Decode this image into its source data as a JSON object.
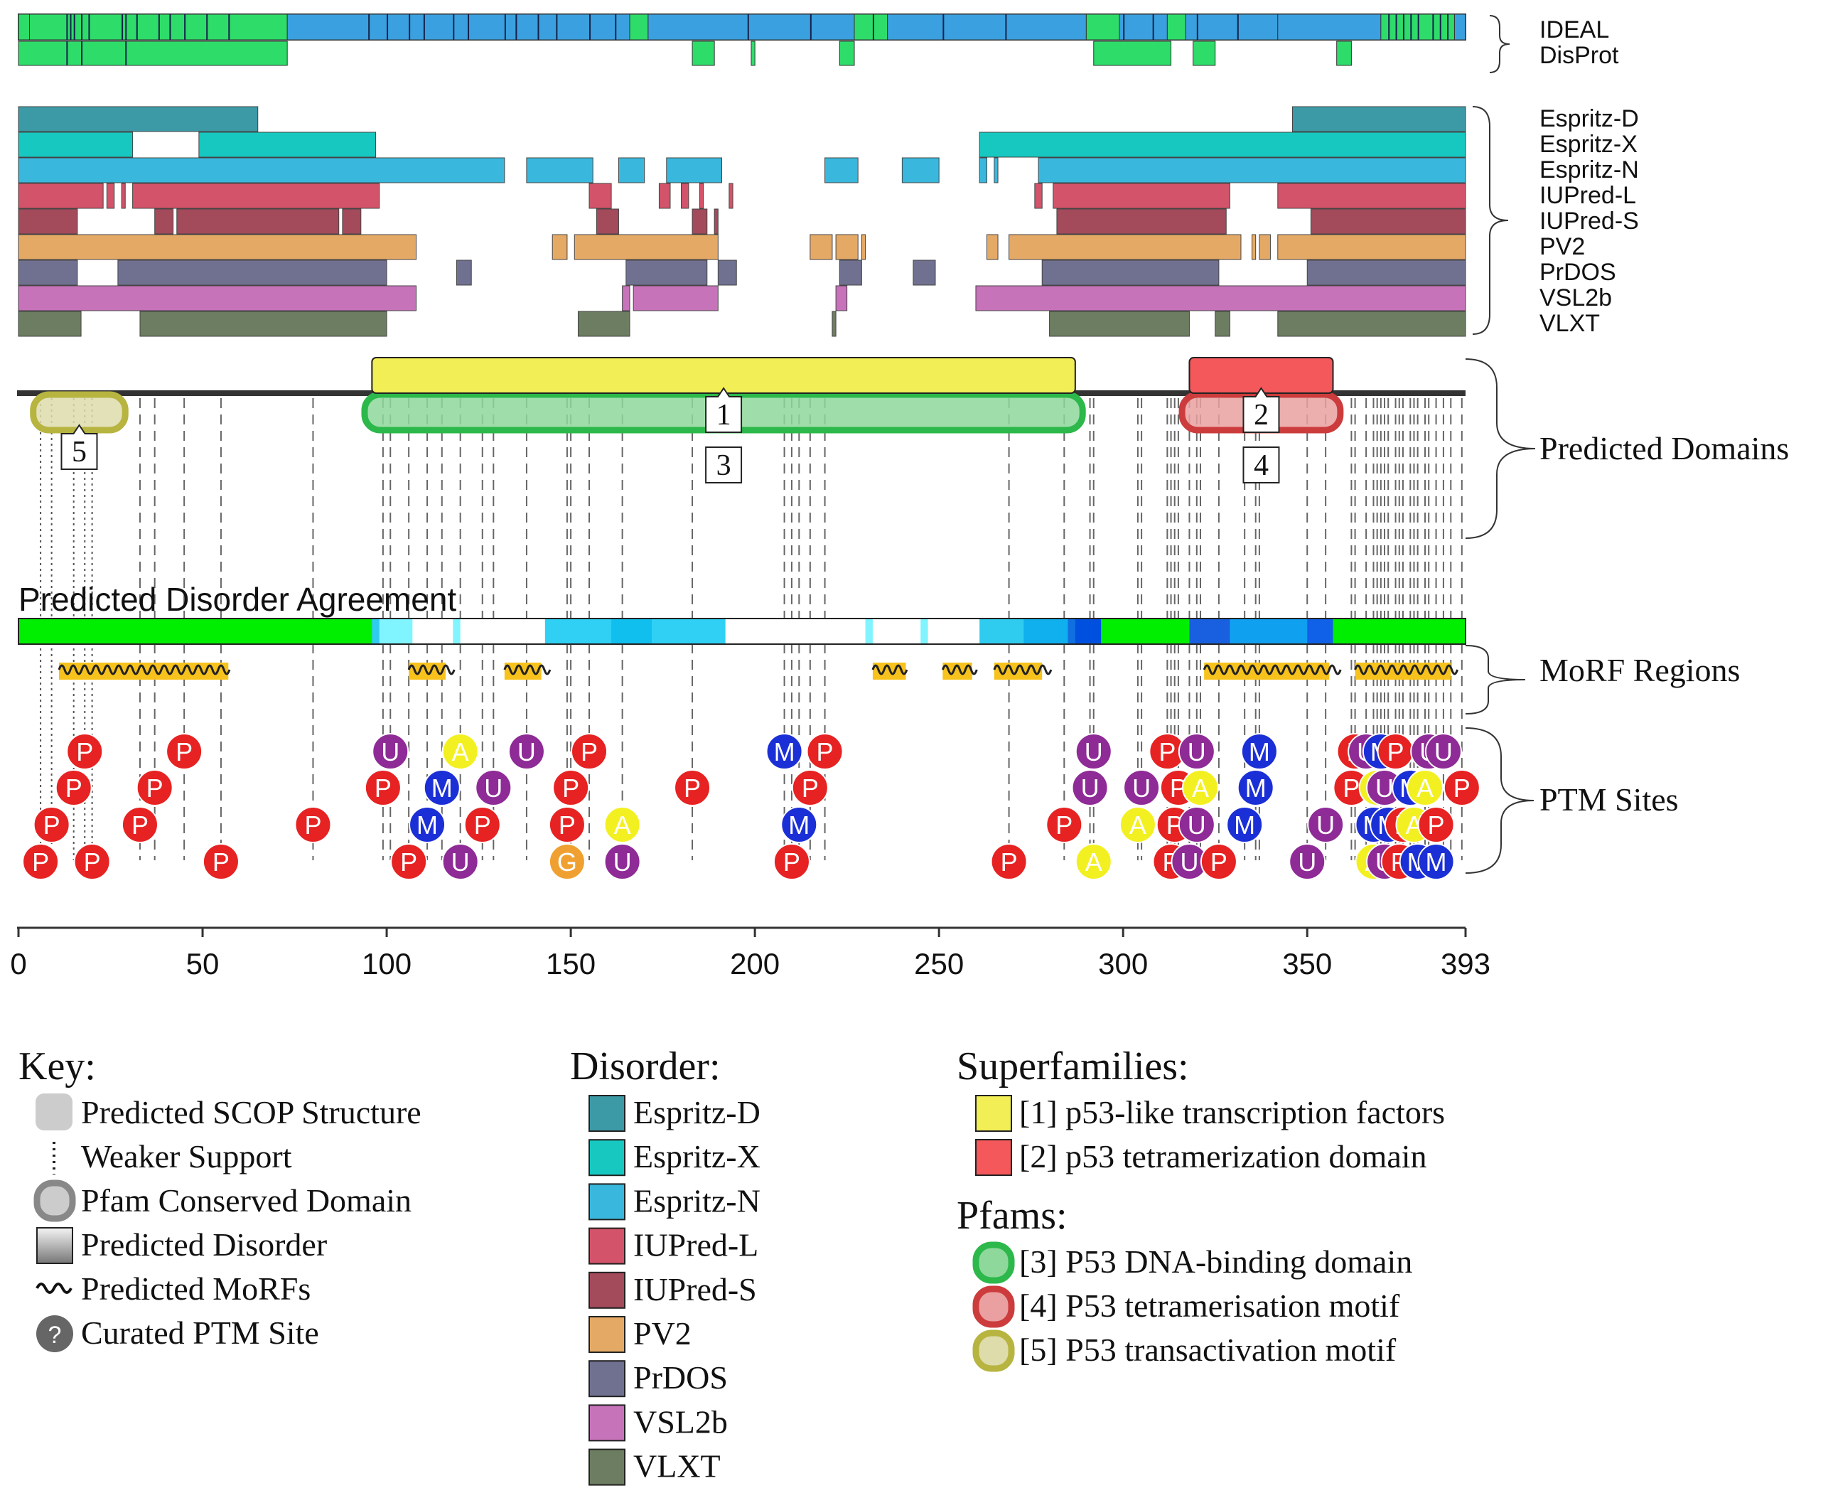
{
  "sequence_length": 393,
  "colors": {
    "ideal_ordered": "#3aa0df",
    "disorder_green": "#2edc6a",
    "superfamily_1": "#f2ee55",
    "superfamily_2": "#f4585a",
    "pfam_3": "#2cb84a",
    "pfam_4": "#cc3c3c",
    "pfam_5": "#b7b440",
    "agreement_high": "#00ee00",
    "morf": "#f7c21c",
    "ptm_P": "#e62222",
    "ptm_U": "#8e2b96",
    "ptm_M": "#1b2fd6",
    "ptm_A": "#f3f022",
    "ptm_G": "#f0a030"
  },
  "top_tracks": {
    "ideal": {
      "label": "IDEAL",
      "segments": [
        [
          0,
          3,
          "#2edc6a"
        ],
        [
          3,
          73,
          "#2edc6a"
        ],
        [
          73,
          166,
          "#3aa0df"
        ],
        [
          166,
          171,
          "#2edc6a"
        ],
        [
          171,
          227,
          "#3aa0df"
        ],
        [
          227,
          236,
          "#2edc6a"
        ],
        [
          236,
          290,
          "#3aa0df"
        ],
        [
          290,
          299,
          "#2edc6a"
        ],
        [
          299,
          312,
          "#3aa0df"
        ],
        [
          312,
          317,
          "#2edc6a"
        ],
        [
          317,
          342,
          "#3aa0df"
        ],
        [
          342,
          370,
          "#3aa0df"
        ],
        [
          370,
          390,
          "#2edc6a"
        ],
        [
          390,
          393,
          "#3aa0df"
        ]
      ],
      "stripes": [
        13,
        14,
        15,
        17,
        19,
        28,
        29,
        32,
        38,
        41,
        45,
        51,
        57,
        95,
        100,
        106,
        110,
        118,
        122,
        132,
        135,
        141,
        146,
        155,
        162,
        198,
        215,
        232,
        251,
        268,
        300,
        308,
        320,
        331,
        372,
        374,
        376,
        378,
        380,
        384,
        386,
        388
      ]
    },
    "disprot": {
      "label": "DisProt",
      "segments": [
        [
          0,
          73
        ],
        [
          183,
          189
        ],
        [
          199,
          200
        ],
        [
          223,
          227
        ],
        [
          292,
          313
        ],
        [
          319,
          325
        ],
        [
          358,
          362
        ]
      ],
      "stripes": [
        13,
        17,
        29
      ]
    }
  },
  "disorder_predictors": [
    {
      "name": "Espritz-D",
      "color": "#3b9aa6",
      "segments": [
        [
          0,
          65
        ],
        [
          346,
          393
        ]
      ]
    },
    {
      "name": "Espritz-X",
      "color": "#16c8c0",
      "segments": [
        [
          0,
          31
        ],
        [
          49,
          97
        ],
        [
          261,
          393
        ]
      ]
    },
    {
      "name": "Espritz-N",
      "color": "#3ab7dc",
      "segments": [
        [
          0,
          132
        ],
        [
          138,
          156
        ],
        [
          163,
          170
        ],
        [
          176,
          191
        ],
        [
          219,
          228
        ],
        [
          240,
          250
        ],
        [
          261,
          263
        ],
        [
          265,
          266
        ],
        [
          277,
          393
        ]
      ]
    },
    {
      "name": "IUPred-L",
      "color": "#d3536a",
      "segments": [
        [
          0,
          23
        ],
        [
          24,
          26
        ],
        [
          28,
          29
        ],
        [
          31,
          98
        ],
        [
          155,
          161
        ],
        [
          174,
          177
        ],
        [
          180,
          182
        ],
        [
          185,
          186
        ],
        [
          193,
          194
        ],
        [
          276,
          278
        ],
        [
          281,
          329
        ],
        [
          342,
          393
        ]
      ]
    },
    {
      "name": "IUPred-S",
      "color": "#a34a5b",
      "segments": [
        [
          0,
          16
        ],
        [
          37,
          42
        ],
        [
          43,
          87
        ],
        [
          88,
          93
        ],
        [
          157,
          163
        ],
        [
          183,
          187
        ],
        [
          189,
          190
        ],
        [
          282,
          328
        ],
        [
          351,
          393
        ]
      ]
    },
    {
      "name": "PV2",
      "color": "#e5a966",
      "segments": [
        [
          0,
          108
        ],
        [
          145,
          149
        ],
        [
          151,
          190
        ],
        [
          215,
          221
        ],
        [
          222,
          228
        ],
        [
          229,
          230
        ],
        [
          263,
          266
        ],
        [
          269,
          332
        ],
        [
          335,
          336
        ],
        [
          337,
          340
        ],
        [
          342,
          393
        ]
      ]
    },
    {
      "name": "PrDOS",
      "color": "#707090",
      "segments": [
        [
          0,
          16
        ],
        [
          27,
          100
        ],
        [
          119,
          123
        ],
        [
          165,
          187
        ],
        [
          190,
          195
        ],
        [
          223,
          229
        ],
        [
          243,
          249
        ],
        [
          278,
          326
        ],
        [
          350,
          393
        ]
      ]
    },
    {
      "name": "VSL2b",
      "color": "#c773ba",
      "segments": [
        [
          0,
          108
        ],
        [
          164,
          166
        ],
        [
          167,
          190
        ],
        [
          222,
          225
        ],
        [
          260,
          393
        ]
      ]
    },
    {
      "name": "VLXT",
      "color": "#6d7d61",
      "segments": [
        [
          0,
          17
        ],
        [
          33,
          100
        ],
        [
          152,
          166
        ],
        [
          221,
          222
        ],
        [
          280,
          318
        ],
        [
          325,
          329
        ],
        [
          342,
          393
        ]
      ]
    }
  ],
  "disorder_bracket_label": "",
  "domains": {
    "superfamilies": [
      {
        "id": "1",
        "start": 96,
        "end": 287,
        "color": "#f2ee55"
      },
      {
        "id": "2",
        "start": 318,
        "end": 357,
        "color": "#f4585a"
      }
    ],
    "pfams": [
      {
        "id": "3",
        "start": 94,
        "end": 289,
        "color": "#2cb84a"
      },
      {
        "id": "4",
        "start": 316,
        "end": 359,
        "color": "#cc3c3c"
      },
      {
        "id": "5",
        "start": 4,
        "end": 29,
        "color": "#b7b440"
      }
    ]
  },
  "section_labels": {
    "predicted_domains": "Predicted Domains",
    "agreement": "Predicted Disorder Agreement",
    "morf": "MoRF Regions",
    "ptm": "PTM Sites"
  },
  "agreement_bar": {
    "segments": [
      [
        0,
        96,
        "#00ee00"
      ],
      [
        96,
        98,
        "#30ccf0"
      ],
      [
        98,
        107,
        "#80f4ff"
      ],
      [
        107,
        118,
        "#ffffff"
      ],
      [
        118,
        120,
        "#80f4ff"
      ],
      [
        120,
        143,
        "#ffffff"
      ],
      [
        143,
        161,
        "#30d0f4"
      ],
      [
        161,
        172,
        "#10bfee"
      ],
      [
        172,
        192,
        "#30d0f4"
      ],
      [
        192,
        230,
        "#ffffff"
      ],
      [
        230,
        232,
        "#80f4ff"
      ],
      [
        232,
        245,
        "#ffffff"
      ],
      [
        245,
        247,
        "#80f4ff"
      ],
      [
        247,
        261,
        "#ffffff"
      ],
      [
        261,
        273,
        "#30ccf0"
      ],
      [
        273,
        285,
        "#10b0ee"
      ],
      [
        285,
        287,
        "#1070e0"
      ],
      [
        287,
        294,
        "#0050e0"
      ],
      [
        294,
        318,
        "#00ee00"
      ],
      [
        318,
        329,
        "#1860e0"
      ],
      [
        329,
        350,
        "#10a0f0"
      ],
      [
        350,
        357,
        "#1060e8"
      ],
      [
        357,
        393,
        "#00ee00"
      ]
    ]
  },
  "morfs": [
    [
      11,
      57
    ],
    [
      106,
      116
    ],
    [
      132,
      142
    ],
    [
      232,
      241
    ],
    [
      251,
      259
    ],
    [
      265,
      278
    ],
    [
      322,
      356
    ],
    [
      363,
      389
    ]
  ],
  "ptm_rows": [
    [
      [
        "P",
        18
      ],
      [
        "P",
        45
      ],
      [
        "U",
        101
      ],
      [
        "A",
        120
      ],
      [
        "U",
        138
      ],
      [
        "P",
        155
      ],
      [
        "M",
        208
      ],
      [
        "P",
        219
      ],
      [
        "U",
        292
      ],
      [
        "P",
        312
      ],
      [
        "U",
        320
      ],
      [
        "M",
        337
      ],
      [
        "P",
        363
      ],
      [
        "U",
        366
      ],
      [
        "M",
        370
      ],
      [
        "P",
        374
      ],
      [
        "U",
        383
      ],
      [
        "U",
        387
      ]
    ],
    [
      [
        "P",
        15
      ],
      [
        "P",
        37
      ],
      [
        "P",
        99
      ],
      [
        "M",
        115
      ],
      [
        "U",
        129
      ],
      [
        "P",
        150
      ],
      [
        "P",
        183
      ],
      [
        "P",
        215
      ],
      [
        "U",
        291
      ],
      [
        "U",
        305
      ],
      [
        "P",
        315
      ],
      [
        "A",
        321
      ],
      [
        "M",
        336
      ],
      [
        "P",
        362
      ],
      [
        "A",
        369
      ],
      [
        "U",
        371
      ],
      [
        "M",
        378
      ],
      [
        "A",
        382
      ],
      [
        "P",
        392
      ]
    ],
    [
      [
        "P",
        9
      ],
      [
        "P",
        33
      ],
      [
        "P",
        80
      ],
      [
        "M",
        111
      ],
      [
        "P",
        126
      ],
      [
        "P",
        149
      ],
      [
        "A",
        164
      ],
      [
        "M",
        212
      ],
      [
        "P",
        284
      ],
      [
        "A",
        304
      ],
      [
        "P",
        314
      ],
      [
        "U",
        320
      ],
      [
        "M",
        333
      ],
      [
        "U",
        355
      ],
      [
        "M",
        368
      ],
      [
        "M",
        372
      ],
      [
        "P",
        376
      ],
      [
        "A",
        379
      ],
      [
        "P",
        385
      ]
    ],
    [
      [
        "P",
        6
      ],
      [
        "P",
        20
      ],
      [
        "P",
        55
      ],
      [
        "P",
        106
      ],
      [
        "U",
        120
      ],
      [
        "G",
        149
      ],
      [
        "U",
        164
      ],
      [
        "P",
        210
      ],
      [
        "P",
        269
      ],
      [
        "A",
        292
      ],
      [
        "P",
        313
      ],
      [
        "U",
        318
      ],
      [
        "P",
        326
      ],
      [
        "U",
        350
      ],
      [
        "A",
        368
      ],
      [
        "U",
        371
      ],
      [
        "P",
        375
      ],
      [
        "M",
        380
      ],
      [
        "M",
        385
      ]
    ]
  ],
  "axis": {
    "ticks": [
      0,
      50,
      100,
      150,
      200,
      250,
      300,
      350,
      393
    ],
    "labels": [
      "0",
      "50",
      "100",
      "150",
      "200",
      "250",
      "300",
      "350",
      "393"
    ]
  },
  "legend": {
    "key": {
      "title": "Key:",
      "items": [
        "Predicted SCOP Structure",
        "Weaker Support",
        "Pfam Conserved Domain",
        "Predicted Disorder",
        "Predicted MoRFs",
        "Curated PTM Site"
      ]
    },
    "disorder": {
      "title": "Disorder:",
      "items": [
        "Espritz-D",
        "Espritz-X",
        "Espritz-N",
        "IUPred-L",
        "IUPred-S",
        "PV2",
        "PrDOS",
        "VSL2b",
        "VLXT"
      ]
    },
    "superfamilies": {
      "title": "Superfamilies:",
      "items": [
        "[1] p53-like transcription factors",
        "[2] p53 tetramerization domain"
      ]
    },
    "pfams": {
      "title": "Pfams:",
      "items": [
        "[3] P53 DNA-binding domain",
        "[4] P53 tetramerisation motif",
        "[5] P53 transactivation motif"
      ]
    }
  },
  "ptm_key_glyph": "?",
  "guide_lines": {
    "dotted": [
      6,
      9,
      15,
      18,
      20
    ],
    "dashed": [
      33,
      37,
      45,
      55,
      80,
      99,
      101,
      106,
      111,
      115,
      120,
      126,
      129,
      138,
      149,
      150,
      155,
      164,
      183,
      208,
      210,
      212,
      215,
      219,
      269,
      284,
      291,
      292,
      304,
      305,
      312,
      313,
      314,
      315,
      318,
      320,
      321,
      326,
      333,
      336,
      337,
      350,
      355,
      362,
      363,
      366,
      368,
      369,
      370,
      371,
      372,
      374,
      375,
      376,
      378,
      379,
      380,
      382,
      383,
      385,
      387,
      389,
      392
    ]
  }
}
